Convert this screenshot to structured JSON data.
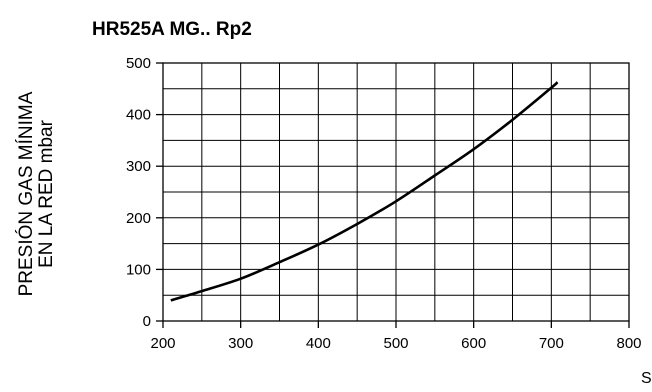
{
  "chart_data": {
    "type": "line",
    "title": "HR525A MG..  Rp2",
    "ylabel": [
      "PRESIÓN GAS MÍNIMA",
      "EN LA RED mbar"
    ],
    "xlabel": "S",
    "xlim": [
      200,
      800
    ],
    "ylim": [
      0,
      500
    ],
    "x_ticks": [
      200,
      300,
      400,
      500,
      600,
      700,
      800
    ],
    "y_ticks": [
      0,
      100,
      200,
      300,
      400,
      500
    ],
    "x_minor_step": 50,
    "y_minor_step": 50,
    "grid": true,
    "series": [
      {
        "x": [
          210,
          250,
          300,
          350,
          400,
          450,
          500,
          550,
          600,
          650,
          700,
          708
        ],
        "y": [
          40,
          58,
          82,
          114,
          148,
          188,
          232,
          282,
          333,
          390,
          452,
          463
        ]
      }
    ]
  }
}
